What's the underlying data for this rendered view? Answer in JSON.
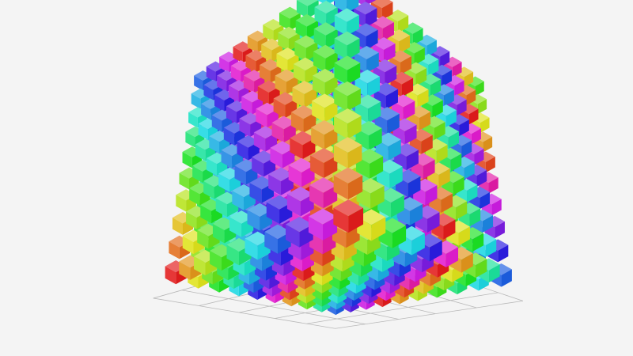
{
  "chart_data": {
    "type": "scatter3D",
    "symbol": "cube",
    "grid": {
      "x": [
        0,
        9
      ],
      "y": [
        0,
        9
      ],
      "z": [
        0,
        9
      ],
      "step": 1
    },
    "color_encoding": "hue",
    "hue_range": [
      0,
      330
    ],
    "axis_grid": true,
    "axis_grid_color": "#b8b8b8",
    "title": "",
    "xlabel": "",
    "ylabel": "",
    "zlabel": "",
    "legend": "none"
  }
}
